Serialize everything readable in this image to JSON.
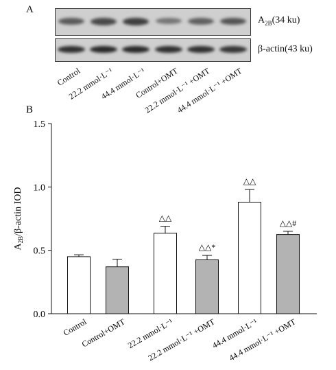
{
  "panel_a": {
    "label": "A",
    "band_labels": {
      "a2b": "A",
      "a2b_sub": "2B",
      "a2b_rest": "(34 ku)",
      "actin": "β-actin(43 ku)"
    },
    "lanes": [
      {
        "label": "Control",
        "a2b_intensity": 0.55,
        "actin_intensity": 0.85
      },
      {
        "label": "22.2 mmol·L⁻¹",
        "a2b_intensity": 0.7,
        "actin_intensity": 0.9
      },
      {
        "label": "44.4 mmol·L⁻¹",
        "a2b_intensity": 0.8,
        "actin_intensity": 0.9
      },
      {
        "label": "Control+OMT",
        "a2b_intensity": 0.3,
        "actin_intensity": 0.85
      },
      {
        "label": "22.2 mmol·L⁻¹ +OMT",
        "a2b_intensity": 0.5,
        "actin_intensity": 0.85
      },
      {
        "label": "44.4 mmol·L⁻¹ +OMT",
        "a2b_intensity": 0.6,
        "actin_intensity": 0.8
      }
    ]
  },
  "chart_data": {
    "type": "bar",
    "panel_label": "B",
    "ylabel_main": "A",
    "ylabel_sub": "2B",
    "ylabel_rest": "/β-actin IOD",
    "ylim": [
      0,
      1.5
    ],
    "yticks": [
      "0.0",
      "0.5",
      "1.0",
      "1.5"
    ],
    "categories": [
      "Control",
      "Control+OMT",
      "22.2 mmol·L⁻¹",
      "22.2 mmol·L⁻¹ +OMT",
      "44.4 mmol·L⁻¹",
      "44.4 mmol·L⁻¹ +OMT"
    ],
    "values": [
      0.45,
      0.37,
      0.635,
      0.425,
      0.88,
      0.625
    ],
    "errors": [
      0.015,
      0.06,
      0.055,
      0.035,
      0.1,
      0.025
    ],
    "fills": [
      "#ffffff",
      "#b3b3b3",
      "#ffffff",
      "#b3b3b3",
      "#ffffff",
      "#b3b3b3"
    ],
    "annotations": [
      "",
      "",
      "△△",
      "△△*",
      "△△",
      "△△#"
    ],
    "grid": false
  }
}
